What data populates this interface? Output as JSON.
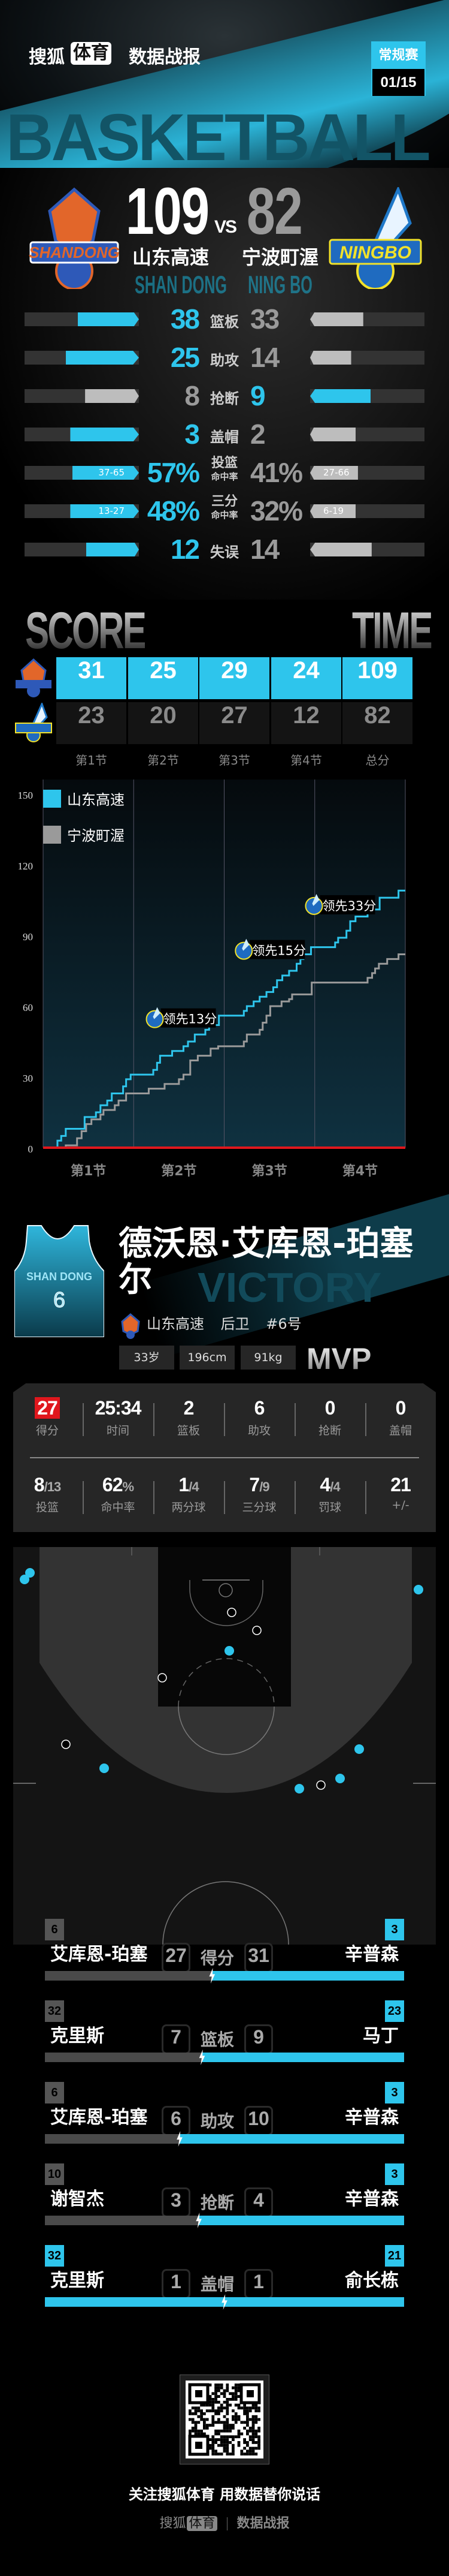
{
  "header": {
    "brand_part1": "搜狐",
    "brand_part2": "体育",
    "section": "数据战报",
    "badge_type": "常规赛",
    "badge_date": "01/15",
    "ribbon_text": "BASKETBALL"
  },
  "match": {
    "home": {
      "name": "山东高速",
      "ghost": "SHAN DONG",
      "logo_text": "SHANDONG",
      "score": "109"
    },
    "away": {
      "name": "宁波町渥",
      "ghost": "NING BO",
      "logo_text": "NINGBO",
      "score": "82"
    },
    "vs": "VS"
  },
  "colors": {
    "accent": "#2ec5ec",
    "gray": "#9a9a9a",
    "red": "#e0171d"
  },
  "team_stats": [
    {
      "label": "篮板",
      "sub": "",
      "home": "38",
      "away": "33",
      "home_num": 38,
      "away_num": 33,
      "leader": "home"
    },
    {
      "label": "助攻",
      "sub": "",
      "home": "25",
      "away": "14",
      "home_num": 25,
      "away_num": 14,
      "leader": "home"
    },
    {
      "label": "抢断",
      "sub": "",
      "home": "8",
      "away": "9",
      "home_num": 8,
      "away_num": 9,
      "leader": "away"
    },
    {
      "label": "盖帽",
      "sub": "",
      "home": "3",
      "away": "2",
      "home_num": 3,
      "away_num": 2,
      "leader": "home"
    },
    {
      "label": "投篮",
      "sub": "命中率",
      "home": "57%",
      "away": "41%",
      "home_num": 57,
      "away_num": 41,
      "home_detail": "37-65",
      "away_detail": "27-66",
      "leader": "home"
    },
    {
      "label": "三分",
      "sub": "命中率",
      "home": "48%",
      "away": "32%",
      "home_num": 48,
      "away_num": 32,
      "home_detail": "13-27",
      "away_detail": "6-19",
      "leader": "home"
    },
    {
      "label": "失误",
      "sub": "",
      "home": "12",
      "away": "14",
      "home_num": 12,
      "away_num": 14,
      "leader": "home"
    }
  ],
  "quarters": {
    "title_left": "SCORE",
    "title_right": "TIME",
    "labels": [
      "第1节",
      "第2节",
      "第3节",
      "第4节",
      "总分"
    ],
    "home": [
      "31",
      "25",
      "29",
      "24",
      "109"
    ],
    "away": [
      "23",
      "20",
      "27",
      "12",
      "82"
    ]
  },
  "chart_data": {
    "type": "line",
    "step": true,
    "x_ticks": [
      "第1节",
      "第2节",
      "第3节",
      "第4节"
    ],
    "xlim": [
      0,
      48
    ],
    "ylim": [
      0,
      150
    ],
    "y_ticks": [
      "0",
      "30",
      "60",
      "90",
      "120",
      "150"
    ],
    "grid": "vertical quarter lines",
    "legend_position": "top-left",
    "series": [
      {
        "name": "山东高速",
        "color": "#2ec5ec",
        "points": [
          [
            0,
            0
          ],
          [
            1.9,
            3
          ],
          [
            2.4,
            5
          ],
          [
            3.0,
            8
          ],
          [
            5.5,
            13
          ],
          [
            7.0,
            15
          ],
          [
            7.6,
            18
          ],
          [
            8.5,
            20
          ],
          [
            9.1,
            23
          ],
          [
            10.6,
            26
          ],
          [
            11.0,
            29
          ],
          [
            11.6,
            31
          ],
          [
            14.6,
            33
          ],
          [
            15.1,
            36
          ],
          [
            15.5,
            39
          ],
          [
            17.1,
            41
          ],
          [
            18.6,
            43
          ],
          [
            19.2,
            45
          ],
          [
            20.1,
            48
          ],
          [
            21.5,
            50
          ],
          [
            22.0,
            52
          ],
          [
            23.3,
            56
          ],
          [
            26.6,
            58
          ],
          [
            27.0,
            60
          ],
          [
            27.9,
            62
          ],
          [
            28.7,
            64
          ],
          [
            29.6,
            66
          ],
          [
            30.5,
            68
          ],
          [
            31.0,
            71
          ],
          [
            31.7,
            73
          ],
          [
            32.6,
            75
          ],
          [
            33.6,
            78
          ],
          [
            34.1,
            80
          ],
          [
            34.5,
            82
          ],
          [
            35.5,
            85
          ],
          [
            38.7,
            87
          ],
          [
            39.1,
            89
          ],
          [
            40.2,
            92
          ],
          [
            40.7,
            96
          ],
          [
            41.4,
            98
          ],
          [
            43.0,
            101
          ],
          [
            44.6,
            106
          ],
          [
            47.1,
            109
          ],
          [
            48,
            109
          ]
        ]
      },
      {
        "name": "宁波町渥",
        "color": "#9a9a9a",
        "points": [
          [
            0,
            0
          ],
          [
            3.0,
            1
          ],
          [
            4.5,
            4
          ],
          [
            5.1,
            7
          ],
          [
            5.7,
            10
          ],
          [
            6.4,
            12
          ],
          [
            7.6,
            14
          ],
          [
            8.0,
            16
          ],
          [
            9.5,
            18
          ],
          [
            10.0,
            20
          ],
          [
            11.0,
            23
          ],
          [
            14.0,
            25
          ],
          [
            16.1,
            27
          ],
          [
            18.0,
            29
          ],
          [
            18.6,
            31
          ],
          [
            19.5,
            37
          ],
          [
            20.5,
            39
          ],
          [
            22.2,
            42
          ],
          [
            23.2,
            43
          ],
          [
            26.6,
            45
          ],
          [
            27.0,
            48
          ],
          [
            28.7,
            50
          ],
          [
            29.1,
            53
          ],
          [
            29.6,
            56
          ],
          [
            30.1,
            60
          ],
          [
            31.6,
            62
          ],
          [
            32.6,
            63
          ],
          [
            33.0,
            65
          ],
          [
            35.6,
            70
          ],
          [
            43.0,
            72
          ],
          [
            43.6,
            74
          ],
          [
            44.0,
            76
          ],
          [
            44.5,
            78
          ],
          [
            45.6,
            80
          ],
          [
            47.1,
            82
          ],
          [
            48,
            82
          ]
        ]
      }
    ],
    "annotations": [
      {
        "x": 14.8,
        "y": 55,
        "text": "领先13分"
      },
      {
        "x": 26.6,
        "y": 84,
        "text": "领先15分"
      },
      {
        "x": 35.9,
        "y": 103,
        "text": "领先33分"
      }
    ]
  },
  "mvp": {
    "name_line1": "德沃恩·艾库恩-珀塞",
    "name_line2": "尔",
    "team": "山东高速",
    "position": "后卫",
    "number": "#6号",
    "jersey_text": "SHAN DONG",
    "jersey_number": "6",
    "age": "33岁",
    "height": "196cm",
    "weight": "91kg",
    "badge": "MVP",
    "watermark": "VICTORY",
    "row1": [
      {
        "v": "27",
        "l": "得分",
        "hl": true
      },
      {
        "v": "25:34",
        "l": "时间"
      },
      {
        "v": "2",
        "l": "篮板"
      },
      {
        "v": "6",
        "l": "助攻"
      },
      {
        "v": "0",
        "l": "抢断"
      },
      {
        "v": "0",
        "l": "盖帽"
      }
    ],
    "row2": [
      {
        "v": "8",
        "s": "/13",
        "l": "投篮"
      },
      {
        "v": "62",
        "s": "%",
        "l": "命中率"
      },
      {
        "v": "1",
        "s": "/4",
        "l": "两分球"
      },
      {
        "v": "7",
        "s": "/9",
        "l": "三分球"
      },
      {
        "v": "4",
        "s": "/4",
        "l": "罚球"
      },
      {
        "v": "21",
        "s": "",
        "l": "+/-"
      }
    ]
  },
  "shot_chart": {
    "made_color": "#2ec5ec",
    "shots": [
      {
        "made": true,
        "x": 28,
        "y": 43
      },
      {
        "made": true,
        "x": 19,
        "y": 54
      },
      {
        "made": true,
        "x": 677,
        "y": 71
      },
      {
        "made": false,
        "x": 365,
        "y": 109
      },
      {
        "made": false,
        "x": 407,
        "y": 139
      },
      {
        "made": true,
        "x": 361,
        "y": 173
      },
      {
        "made": false,
        "x": 249,
        "y": 218
      },
      {
        "made": false,
        "x": 88,
        "y": 329
      },
      {
        "made": true,
        "x": 152,
        "y": 369
      },
      {
        "made": true,
        "x": 578,
        "y": 337
      },
      {
        "made": true,
        "x": 546,
        "y": 386
      },
      {
        "made": false,
        "x": 514,
        "y": 397
      },
      {
        "made": true,
        "x": 478,
        "y": 403
      }
    ]
  },
  "leaders": [
    {
      "label": "得分",
      "left_name": "艾库恩-珀塞",
      "right_name": "辛普森",
      "left": "27",
      "right": "31",
      "left_num": 27,
      "right_num": 31,
      "left_jersey": "6",
      "right_jersey": "3",
      "leader": "right"
    },
    {
      "label": "篮板",
      "left_name": "克里斯",
      "right_name": "马丁",
      "left": "7",
      "right": "9",
      "left_num": 7,
      "right_num": 9,
      "left_jersey": "32",
      "right_jersey": "23",
      "leader": "right"
    },
    {
      "label": "助攻",
      "left_name": "艾库恩-珀塞",
      "right_name": "辛普森",
      "left": "6",
      "right": "10",
      "left_num": 6,
      "right_num": 10,
      "left_jersey": "6",
      "right_jersey": "3",
      "leader": "right"
    },
    {
      "label": "抢断",
      "left_name": "谢智杰",
      "right_name": "辛普森",
      "left": "3",
      "right": "4",
      "left_num": 3,
      "right_num": 4,
      "left_jersey": "10",
      "right_jersey": "3",
      "leader": "right"
    },
    {
      "label": "盖帽",
      "left_name": "克里斯",
      "right_name": "俞长栋",
      "left": "1",
      "right": "1",
      "left_num": 1,
      "right_num": 1,
      "left_jersey": "32",
      "right_jersey": "21",
      "leader": "tie"
    }
  ],
  "footer": {
    "slogan": "关注搜狐体育 用数据替你说话",
    "brand_part1": "搜狐",
    "brand_part2": "体育",
    "section": "数据战报"
  }
}
